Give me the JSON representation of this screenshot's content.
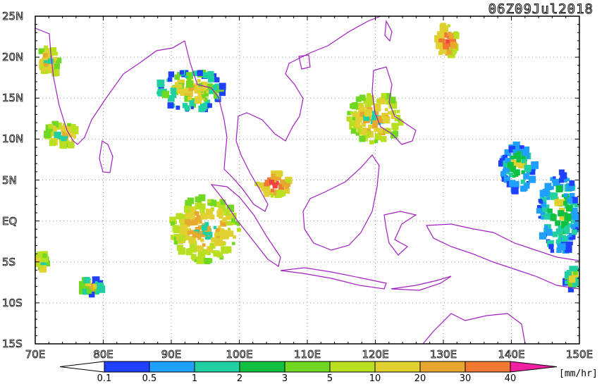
{
  "title": "06Z09Jul2018",
  "lat_labels": [
    "25N",
    "20N",
    "15N",
    "10N",
    "5N",
    "EQ",
    "5S",
    "10S",
    "15S"
  ],
  "lon_labels": [
    "70E",
    "80E",
    "90E",
    "100E",
    "110E",
    "120E",
    "130E",
    "140E",
    "150E"
  ],
  "colorbar": {
    "unit": "[mm/hr]",
    "tick_labels": [
      "0.1",
      "0.5",
      "1",
      "2",
      "3",
      "5",
      "10",
      "20",
      "30",
      "40"
    ],
    "colors": [
      "#2040ff",
      "#1fa0ff",
      "#20d0a0",
      "#10c040",
      "#70d820",
      "#b8e020",
      "#e0d030",
      "#e8a830",
      "#f07830",
      "#f04040",
      "#f020a0"
    ]
  },
  "map": {
    "extent": {
      "lon": [
        70,
        150
      ],
      "lat": [
        -15,
        25
      ]
    },
    "grid": "dotted every 10 degrees",
    "coastline_color": "#a020c0",
    "precip_regions": [
      {
        "lon": 95,
        "lat": -1,
        "rx": 5,
        "ry": 4,
        "level": "mid"
      },
      {
        "lon": 93,
        "lat": 16,
        "rx": 5,
        "ry": 2.5,
        "level": "mixed"
      },
      {
        "lon": 72,
        "lat": 19.5,
        "rx": 1.5,
        "ry": 2,
        "level": "mid"
      },
      {
        "lon": 74,
        "lat": 10.5,
        "rx": 2.5,
        "ry": 1.5,
        "level": "mid"
      },
      {
        "lon": 105,
        "lat": 4.5,
        "rx": 2.5,
        "ry": 1.5,
        "level": "high"
      },
      {
        "lon": 120,
        "lat": 12.5,
        "rx": 4,
        "ry": 3,
        "level": "mid"
      },
      {
        "lon": 130.5,
        "lat": 22,
        "rx": 1.5,
        "ry": 2,
        "level": "high"
      },
      {
        "lon": 141,
        "lat": 6.5,
        "rx": 2.5,
        "ry": 3,
        "level": "low"
      },
      {
        "lon": 147,
        "lat": 1,
        "rx": 3,
        "ry": 5,
        "level": "low"
      },
      {
        "lon": 71,
        "lat": -5,
        "rx": 0.8,
        "ry": 1,
        "level": "mid"
      },
      {
        "lon": 78,
        "lat": -8,
        "rx": 2,
        "ry": 1,
        "level": "mixed"
      },
      {
        "lon": 149,
        "lat": -7,
        "rx": 1,
        "ry": 1.5,
        "level": "mixed"
      }
    ]
  }
}
